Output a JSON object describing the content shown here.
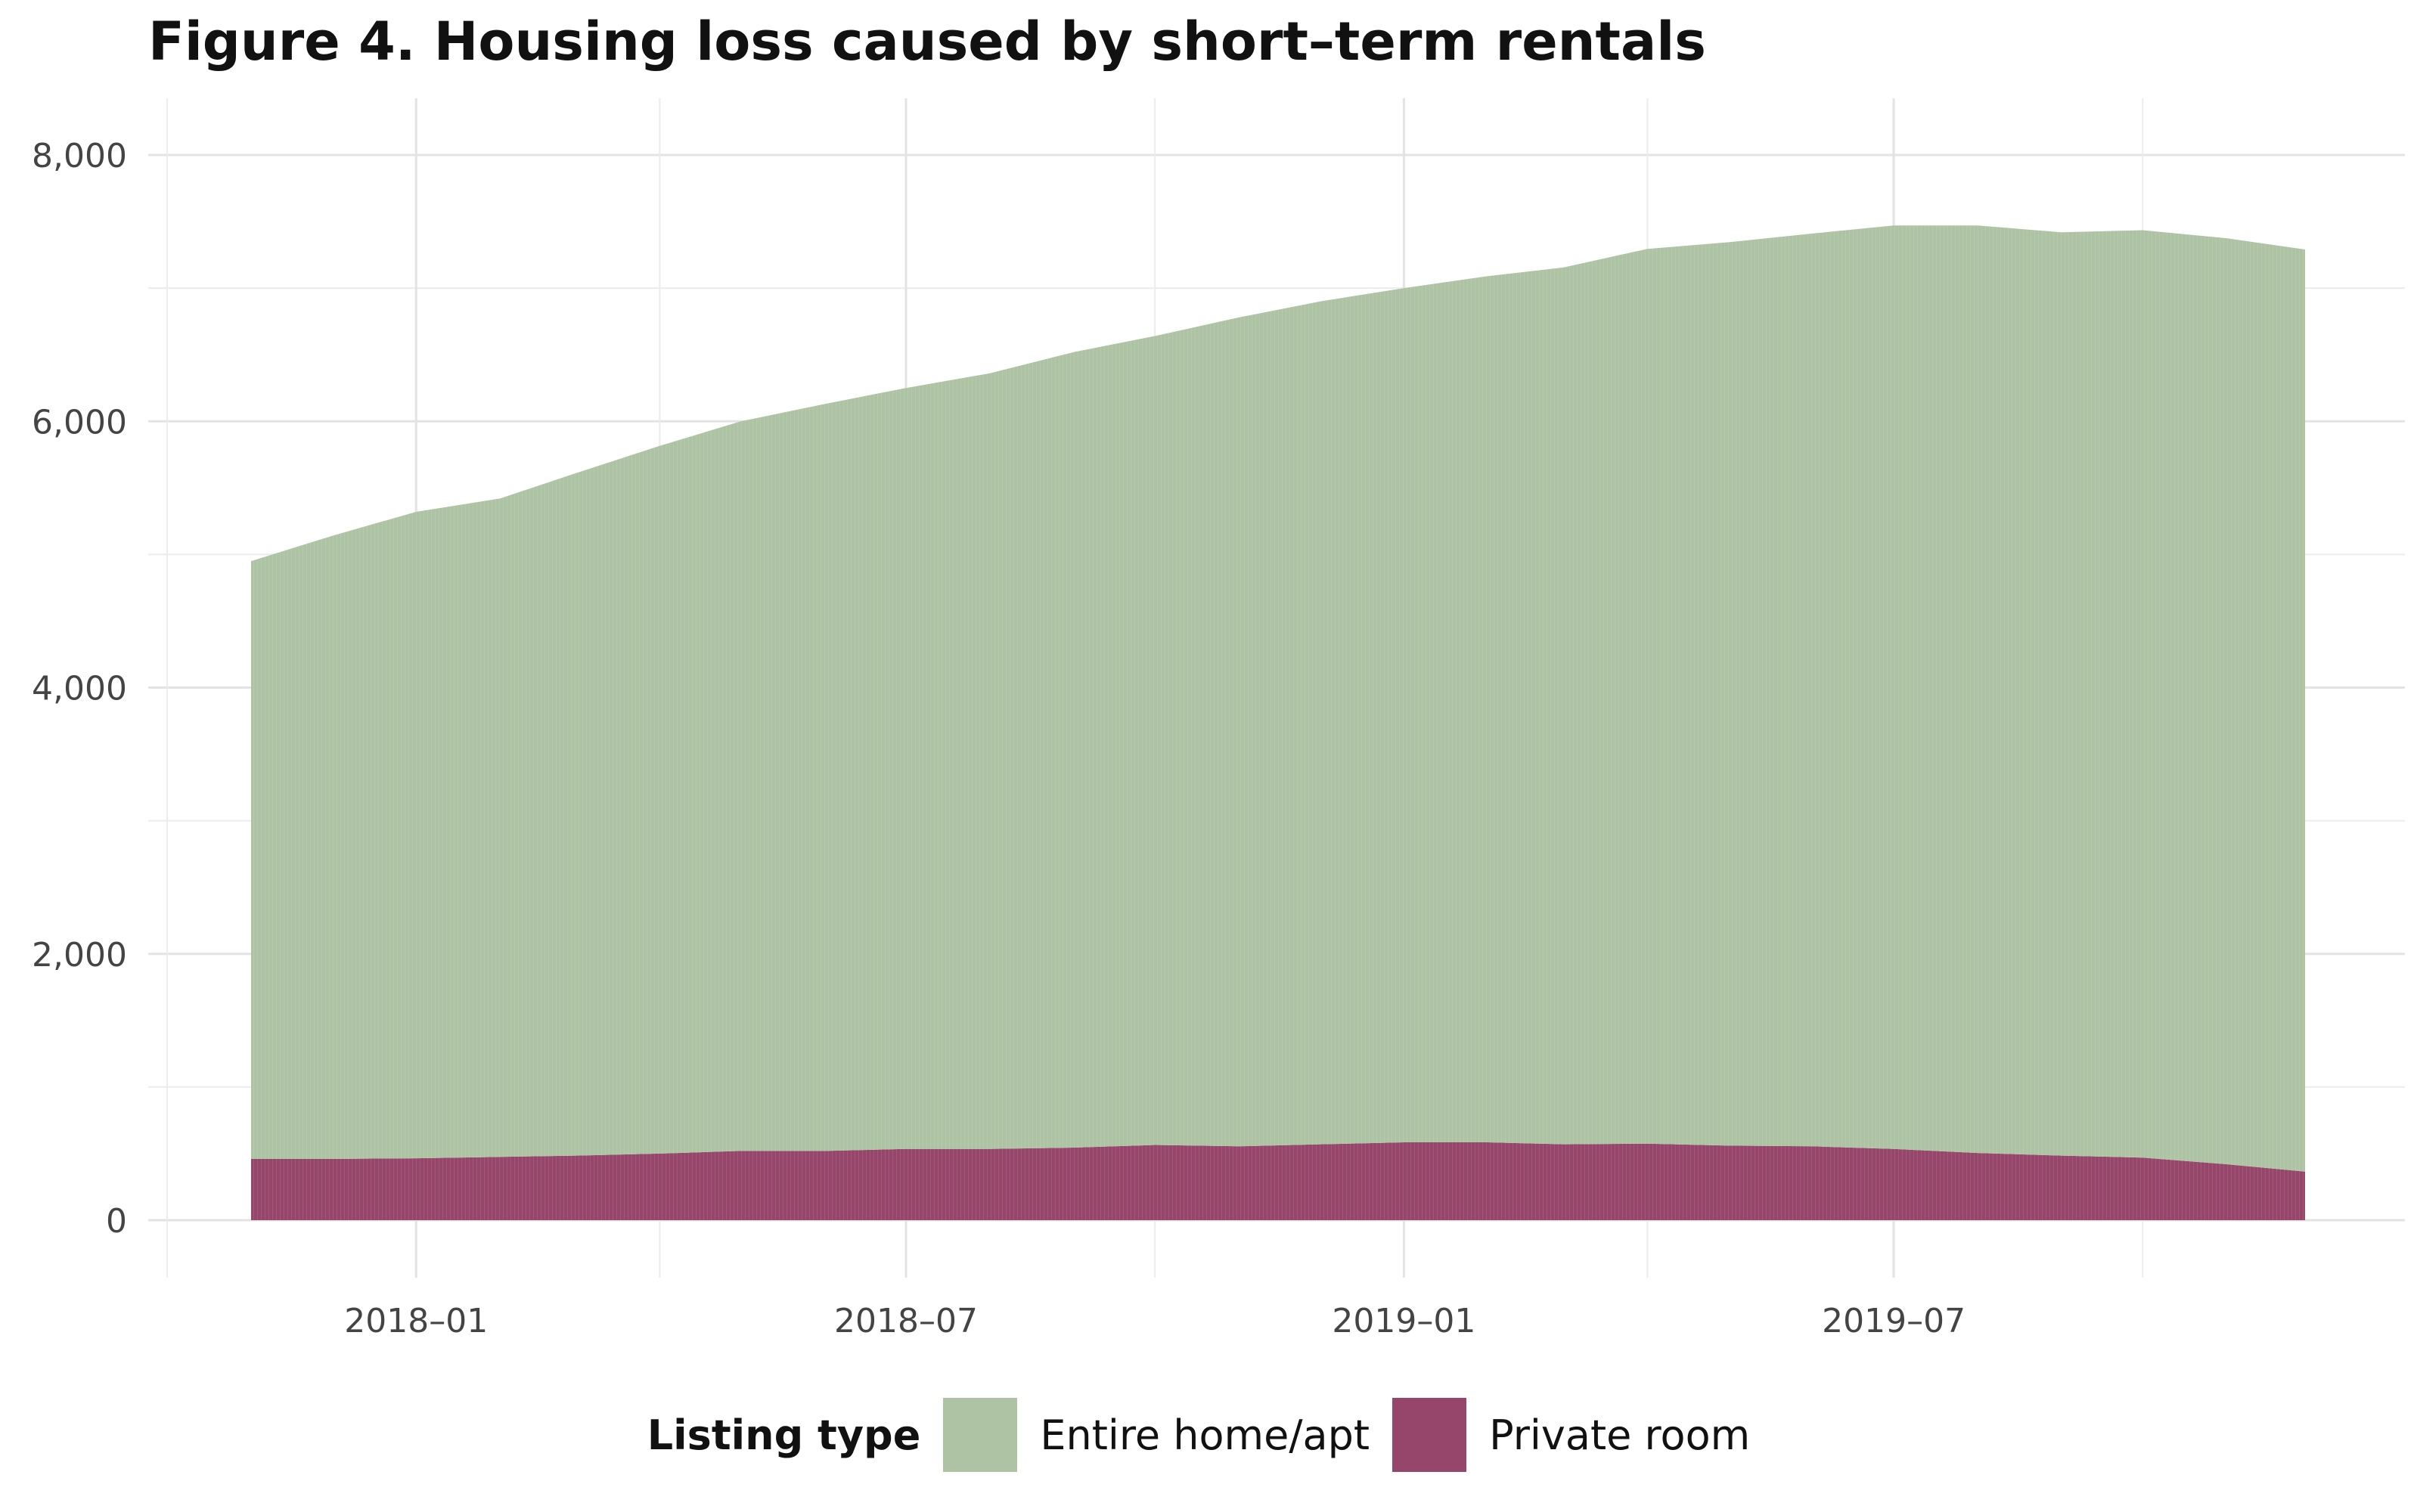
{
  "chart_data": {
    "type": "area",
    "title": "Figure 4. Housing loss caused by short–term rentals",
    "xlabel": "",
    "ylabel": "",
    "stacked": true,
    "x_range": [
      "2017-11-01",
      "2019-11-30"
    ],
    "ylim": [
      0,
      8300
    ],
    "y_ticks": [
      0,
      2000,
      4000,
      6000,
      8000
    ],
    "y_tick_labels": [
      "0",
      "2,000",
      "4,000",
      "6,000",
      "8,000"
    ],
    "x_ticks": [
      "2018-01-01",
      "2018-07-01",
      "2019-01-01",
      "2019-07-01"
    ],
    "x_tick_labels": [
      "2018–01",
      "2018–07",
      "2019–01",
      "2019–07"
    ],
    "grid": true,
    "legend_position": "bottom",
    "legend_title": "Listing type",
    "x": [
      "2017-11-01",
      "2017-12-01",
      "2018-01-01",
      "2018-02-01",
      "2018-03-01",
      "2018-04-01",
      "2018-05-01",
      "2018-06-01",
      "2018-07-01",
      "2018-08-01",
      "2018-09-01",
      "2018-10-01",
      "2018-11-01",
      "2018-12-01",
      "2019-01-01",
      "2019-02-01",
      "2019-03-01",
      "2019-04-01",
      "2019-05-01",
      "2019-06-01",
      "2019-07-01",
      "2019-08-01",
      "2019-09-01",
      "2019-10-01",
      "2019-11-01",
      "2019-11-30"
    ],
    "series": [
      {
        "name": "Private room",
        "color": "#96466a",
        "values": [
          460,
          460,
          465,
          475,
          485,
          500,
          520,
          520,
          535,
          535,
          545,
          565,
          555,
          570,
          585,
          585,
          570,
          575,
          560,
          555,
          535,
          505,
          485,
          470,
          420,
          365
        ]
      },
      {
        "name": "Entire home/apt",
        "color": "#adc3a3",
        "values": [
          4490,
          4680,
          4855,
          4945,
          5125,
          5315,
          5480,
          5610,
          5715,
          5825,
          5975,
          6075,
          6225,
          6330,
          6415,
          6505,
          6585,
          6720,
          6785,
          6855,
          6935,
          6965,
          6935,
          6965,
          6955,
          6925
        ]
      }
    ]
  }
}
